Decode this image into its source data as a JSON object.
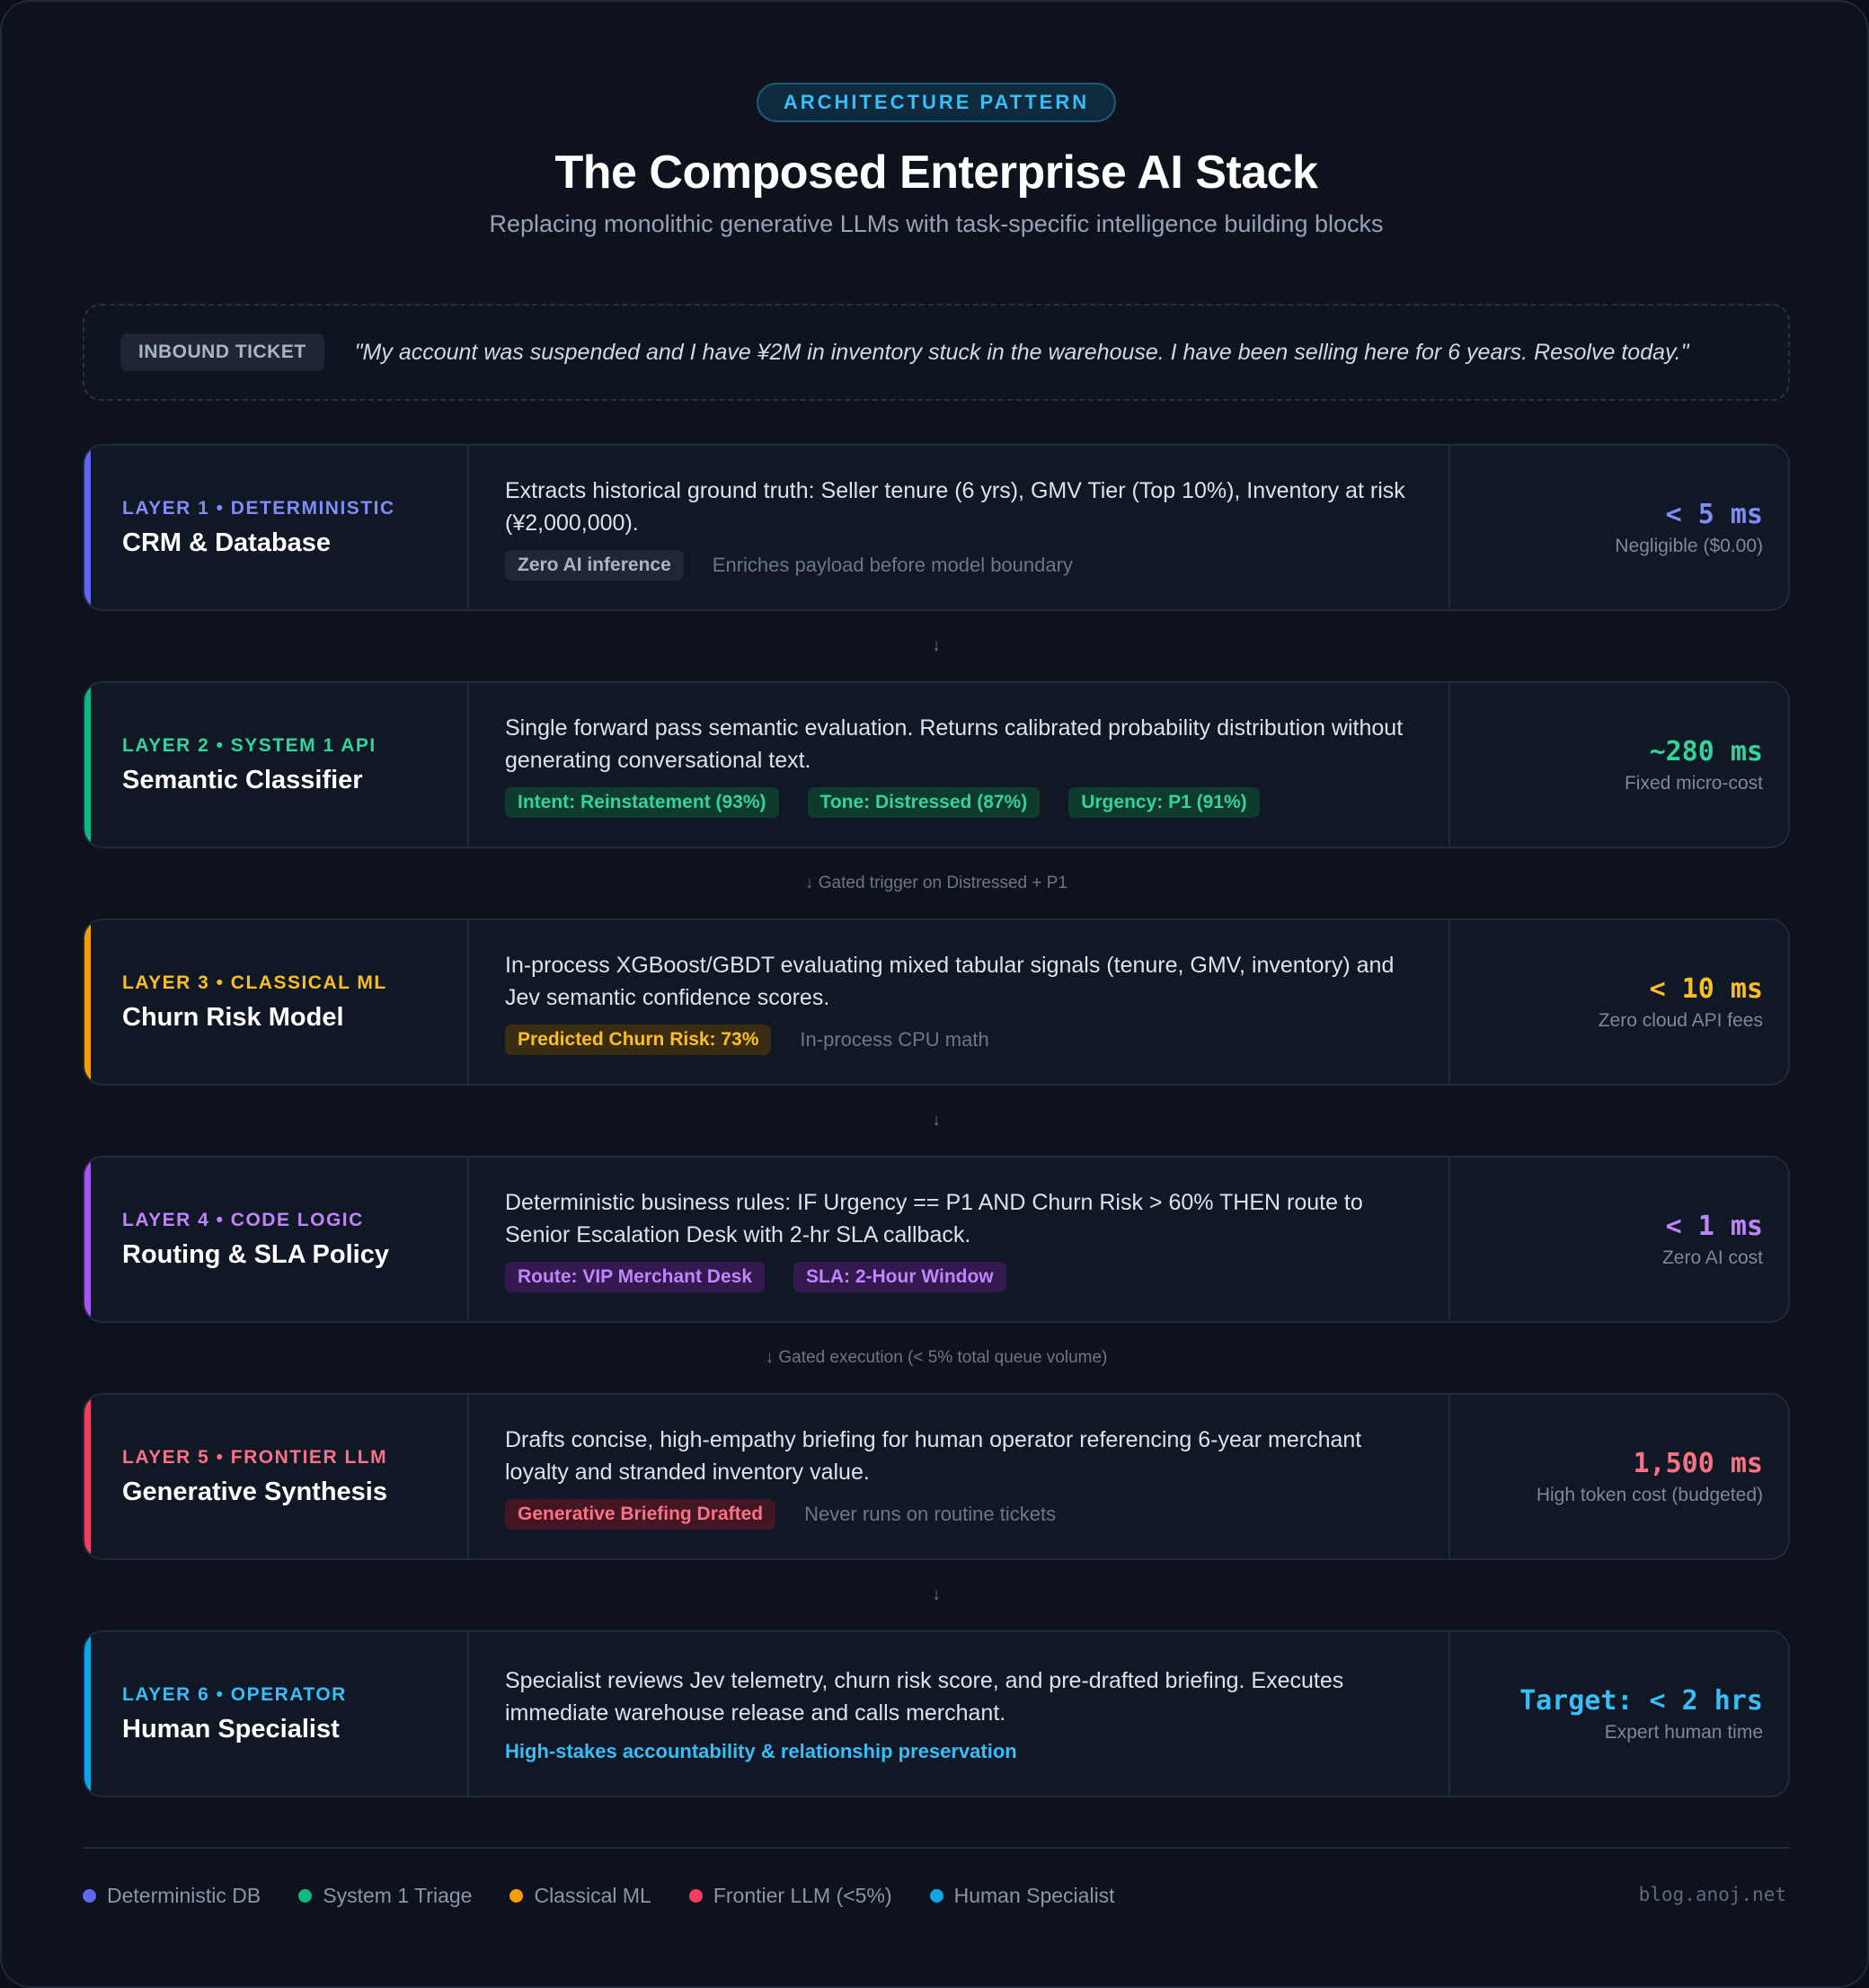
{
  "header": {
    "pill": "ARCHITECTURE PATTERN",
    "title": "The Composed Enterprise AI Stack",
    "subtitle": "Replacing monolithic generative LLMs with task-specific intelligence building blocks"
  },
  "ticket": {
    "badge": "INBOUND TICKET",
    "text": "\"My account was suspended and I have ¥2M in inventory stuck in the warehouse. I have been selling here for 6 years. Resolve today.\""
  },
  "colors": {
    "layer1": "#6366f1",
    "layer2": "#10b981",
    "layer3": "#f59e0b",
    "layer4": "#a855f7",
    "layer5": "#f43f5e",
    "layer6": "#0ea5e9"
  },
  "layers": [
    {
      "tag": "LAYER 1 • DETERMINISTIC",
      "name": "CRM & Database",
      "desc": "Extracts historical ground truth: Seller tenure (6 yrs), GMV Tier (Top 10%), Inventory at risk (¥2,000,000).",
      "chips": [
        "Zero AI inference"
      ],
      "note": "Enriches payload before model boundary",
      "metric": "< 5 ms",
      "metric_sub": "Negligible ($0.00)"
    },
    {
      "tag": "LAYER 2 • SYSTEM 1 API",
      "name": "Semantic Classifier",
      "desc": "Single forward pass semantic evaluation. Returns calibrated probability distribution without generating conversational text.",
      "chips": [
        "Intent: Reinstatement (93%)",
        "Tone: Distressed (87%)",
        "Urgency: P1 (91%)"
      ],
      "note": "",
      "metric": "~280 ms",
      "metric_sub": "Fixed micro-cost"
    },
    {
      "tag": "LAYER 3 • CLASSICAL ML",
      "name": "Churn Risk Model",
      "desc": "In-process XGBoost/GBDT evaluating mixed tabular signals (tenure, GMV, inventory) and Jev semantic confidence scores.",
      "chips": [
        "Predicted Churn Risk: 73%"
      ],
      "note": "In-process CPU math",
      "metric": "< 10 ms",
      "metric_sub": "Zero cloud API fees"
    },
    {
      "tag": "LAYER 4 • CODE LOGIC",
      "name": "Routing & SLA Policy",
      "desc": "Deterministic business rules: IF Urgency == P1 AND Churn Risk > 60% THEN route to Senior Escalation Desk with 2-hr SLA callback.",
      "chips": [
        "Route: VIP Merchant Desk",
        "SLA: 2-Hour Window"
      ],
      "note": "",
      "metric": "< 1 ms",
      "metric_sub": "Zero AI cost"
    },
    {
      "tag": "LAYER 5 • FRONTIER LLM",
      "name": "Generative Synthesis",
      "desc": "Drafts concise, high-empathy briefing for human operator referencing 6-year merchant loyalty and stranded inventory value.",
      "chips": [
        "Generative Briefing Drafted"
      ],
      "note": "Never runs on routine tickets",
      "metric": "1,500 ms",
      "metric_sub": "High token cost (budgeted)"
    },
    {
      "tag": "LAYER 6 • OPERATOR",
      "name": "Human Specialist",
      "desc": "Specialist reviews Jev telemetry, churn risk score, and pre-drafted briefing. Executes immediate warehouse release and calls merchant.",
      "highlight": "High-stakes accountability & relationship preservation",
      "metric": "Target: < 2 hrs",
      "metric_sub": "Expert human time"
    }
  ],
  "connectors": [
    "↓",
    "↓ Gated trigger on Distressed + P1",
    "↓",
    "↓ Gated execution (< 5% total queue volume)",
    "↓"
  ],
  "legend": [
    {
      "label": "Deterministic DB",
      "color": "#6366f1"
    },
    {
      "label": "System 1 Triage",
      "color": "#10b981"
    },
    {
      "label": "Classical ML",
      "color": "#f59e0b"
    },
    {
      "label": "Frontier LLM (<5%)",
      "color": "#f43f5e"
    },
    {
      "label": "Human Specialist",
      "color": "#0ea5e9"
    }
  ],
  "credit": "blog.anoj.net"
}
